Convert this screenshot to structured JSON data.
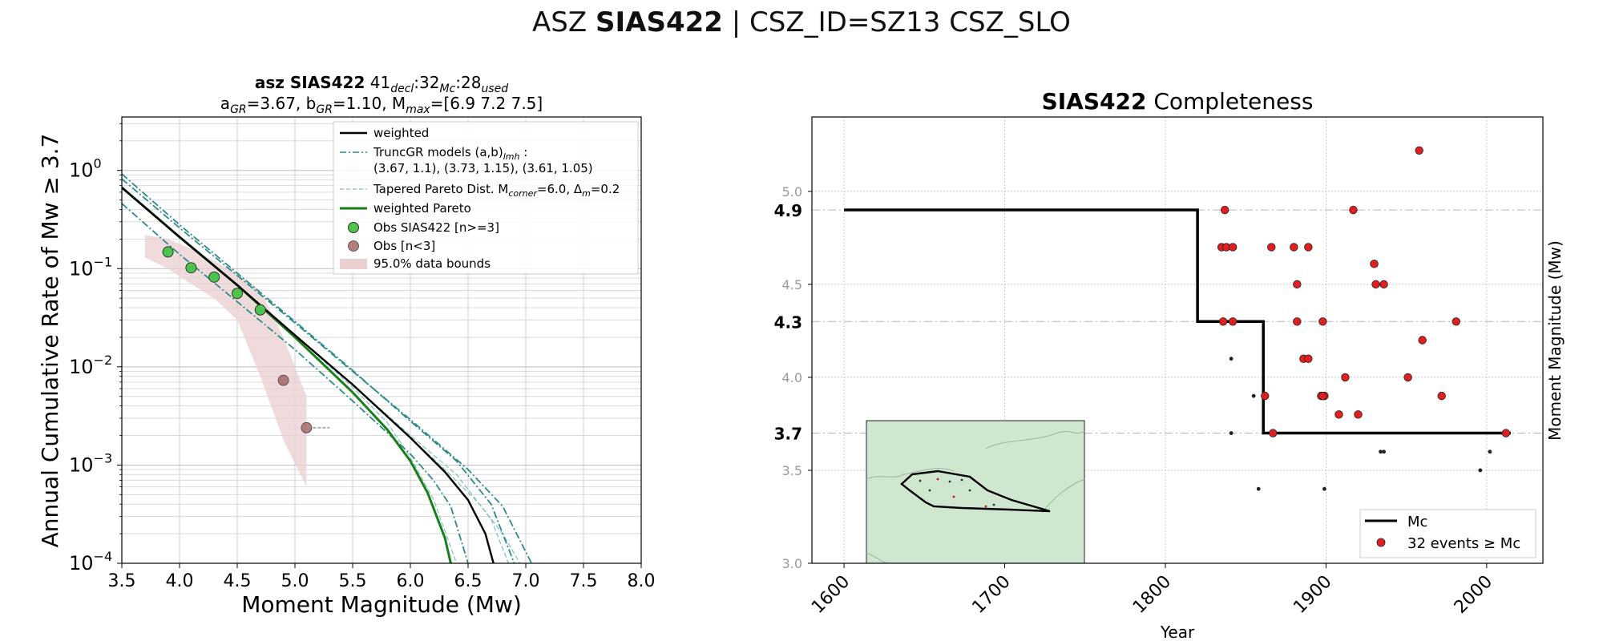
{
  "suptitle": {
    "prefix": "ASZ ",
    "bold": "SIAS422",
    "suffix": " | CSZ_ID=SZ13 CSZ_SLO"
  },
  "colors": {
    "green": "#1a7f1a",
    "teal": "#2e8b8b",
    "lightteal": "#7fbfbf",
    "obs": "#4cc44c",
    "obslow": "#a0605f",
    "band": "#e9cfcf",
    "mcred": "#e02020",
    "inset": "#cfe6cf"
  },
  "chart_data": [
    {
      "type": "line",
      "title_line1": {
        "bold": "asz SIAS422",
        "rest": "  41",
        "sub1": "decl",
        "t2": ":32",
        "sub2": "Mc",
        "t3": ":28",
        "sub3": "used"
      },
      "title_line2": {
        "a": "a",
        "a_sub": "GR",
        "a_val": "=3.67,  b",
        "b_sub": "GR",
        "b_val": "=1.10, M",
        "m_sub": "max",
        "m_val": "=[6.9 7.2 7.5]"
      },
      "xlabel": "Moment Magnitude (Mw)",
      "ylabel": "Annual Cumulative Rate of Mw  ≥  3.7",
      "xlim": [
        3.5,
        8.0
      ],
      "ylim": [
        0.0001,
        3.5
      ],
      "yscale": "log",
      "xticks": [
        "3.5",
        "4.0",
        "4.5",
        "5.0",
        "5.5",
        "6.0",
        "6.5",
        "7.0",
        "7.5",
        "8.0"
      ],
      "yticks": [
        {
          "v": 1,
          "base": "10",
          "exp": "0"
        },
        {
          "v": 0.1,
          "base": "10",
          "exp": "−1"
        },
        {
          "v": 0.01,
          "base": "10",
          "exp": "−2"
        },
        {
          "v": 0.001,
          "base": "10",
          "exp": "−3"
        },
        {
          "v": 0.0001,
          "base": "10",
          "exp": "−4"
        }
      ],
      "grid": true,
      "legend_position": "top-right",
      "legend": [
        {
          "label": "weighted",
          "style": "black"
        },
        {
          "label": "TruncGR models (a,b)",
          "sub": "lmh",
          "tail": " :",
          "label2": " (3.67, 1.1), (3.73, 1.15), (3.61, 1.05)",
          "style": "tealdash"
        },
        {
          "label": "Tapered Pareto Dist. M",
          "sub": "corner",
          "tail": "=6.0, Δ",
          "sub2": "m",
          "tail2": "=0.2",
          "style": "lightdash"
        },
        {
          "label": "weighted Pareto",
          "style": "green"
        },
        {
          "label": "Obs SIAS422 [n>=3]",
          "style": "obs"
        },
        {
          "label": "Obs [n<3]",
          "style": "obslow"
        },
        {
          "label": "95.0% data bounds",
          "style": "band"
        }
      ],
      "series": [
        {
          "name": "weighted",
          "x": [
            3.5,
            4.0,
            4.5,
            5.0,
            5.5,
            6.0,
            6.3,
            6.5,
            6.65,
            6.72
          ],
          "y": [
            0.67,
            0.21,
            0.068,
            0.021,
            0.0066,
            0.0019,
            0.00085,
            0.00044,
            0.0002,
            0.0001
          ]
        },
        {
          "name": "TruncGR models",
          "x": [
            3.5,
            4.0,
            4.5,
            5.0,
            5.5,
            6.0,
            6.4,
            6.7,
            6.9
          ],
          "y": [
            0.92,
            0.28,
            0.09,
            0.029,
            0.0092,
            0.0028,
            0.0011,
            0.0004,
            0.0001
          ]
        },
        {
          "name": "TruncGR models",
          "x": [
            3.5,
            4.0,
            4.5,
            5.0,
            5.5,
            6.0,
            6.5,
            6.8,
            7.05
          ],
          "y": [
            0.82,
            0.26,
            0.085,
            0.028,
            0.009,
            0.0029,
            0.0009,
            0.00038,
            0.0001
          ]
        },
        {
          "name": "TruncGR models",
          "x": [
            3.5,
            4.0,
            4.5,
            5.0,
            5.5,
            6.0,
            6.2,
            6.35,
            6.5
          ],
          "y": [
            0.46,
            0.14,
            0.046,
            0.015,
            0.0045,
            0.0013,
            0.0007,
            0.00038,
            0.0001
          ]
        },
        {
          "name": "Tapered Pareto Dist.",
          "x": [
            3.5,
            4.0,
            4.5,
            5.0,
            5.5,
            5.8,
            6.0,
            6.2,
            6.4
          ],
          "y": [
            0.67,
            0.21,
            0.068,
            0.021,
            0.0062,
            0.0027,
            0.0012,
            0.00045,
            0.0001
          ]
        },
        {
          "name": "Tapered Pareto Dist.",
          "x": [
            3.5,
            4.0,
            4.5,
            5.0,
            5.5,
            6.0,
            6.3,
            6.6,
            6.8,
            6.95
          ],
          "y": [
            0.67,
            0.21,
            0.068,
            0.021,
            0.0066,
            0.0019,
            0.0009,
            0.0004,
            0.0002,
            0.0001
          ]
        },
        {
          "name": "Tapered Pareto Dist.",
          "x": [
            3.5,
            4.0,
            4.5,
            5.0,
            5.5,
            6.0,
            6.4,
            6.7,
            6.85
          ],
          "y": [
            0.67,
            0.21,
            0.068,
            0.021,
            0.0066,
            0.002,
            0.0008,
            0.00028,
            0.0001
          ]
        },
        {
          "name": "weighted Pareto",
          "x": [
            3.5,
            4.0,
            4.5,
            5.0,
            5.5,
            5.8,
            6.0,
            6.15,
            6.3,
            6.35
          ],
          "y": [
            0.67,
            0.21,
            0.068,
            0.02,
            0.0055,
            0.0023,
            0.0011,
            0.00052,
            0.00018,
            0.0001
          ]
        }
      ],
      "obs": [
        {
          "x": 3.9,
          "y": 0.148
        },
        {
          "x": 4.1,
          "y": 0.102
        },
        {
          "x": 4.3,
          "y": 0.082
        },
        {
          "x": 4.5,
          "y": 0.056
        },
        {
          "x": 4.7,
          "y": 0.038
        }
      ],
      "obs_low": [
        {
          "x": 4.9,
          "y": 0.0073
        },
        {
          "x": 5.1,
          "y": 0.0024
        }
      ],
      "band": {
        "x": [
          3.7,
          3.9,
          4.1,
          4.3,
          4.5,
          4.7,
          4.9,
          5.1,
          5.1,
          4.9,
          4.7,
          4.5,
          4.3,
          4.1,
          3.9,
          3.7
        ],
        "y": [
          0.22,
          0.2,
          0.16,
          0.12,
          0.09,
          0.06,
          0.02,
          0.005,
          0.0006,
          0.0018,
          0.008,
          0.03,
          0.05,
          0.07,
          0.1,
          0.13
        ]
      }
    },
    {
      "type": "scatter",
      "title": {
        "bold": "SIAS422",
        "rest": " Completeness"
      },
      "xlabel": "Year",
      "ylabel": "Moment Magnitude (Mw)",
      "xlim": [
        1580,
        2035
      ],
      "ylim": [
        3.0,
        5.4
      ],
      "xticks": [
        "1600",
        "1700",
        "1800",
        "1900",
        "2000"
      ],
      "yticks": [
        "3.0",
        "3.5",
        "4.0",
        "4.5",
        "5.0"
      ],
      "mc_labels": [
        "4.9",
        "4.3",
        "3.7"
      ],
      "grid": true,
      "legend_position": "bottom-right",
      "legend": [
        {
          "label": "Mc",
          "style": "black"
        },
        {
          "label": "32 events ≥ Mc",
          "style": "red"
        }
      ],
      "mc_step": {
        "x": [
          1600,
          1820,
          1820,
          1861,
          1861,
          2015
        ],
        "y": [
          4.9,
          4.9,
          4.3,
          4.3,
          3.7,
          3.7
        ]
      },
      "events_above": [
        {
          "x": 1958,
          "y": 5.22
        },
        {
          "x": 1837,
          "y": 4.9
        },
        {
          "x": 1917,
          "y": 4.9
        },
        {
          "x": 1835,
          "y": 4.7
        },
        {
          "x": 1838,
          "y": 4.7
        },
        {
          "x": 1842,
          "y": 4.7
        },
        {
          "x": 1866,
          "y": 4.7
        },
        {
          "x": 1880,
          "y": 4.7
        },
        {
          "x": 1889,
          "y": 4.7
        },
        {
          "x": 1930,
          "y": 4.61
        },
        {
          "x": 1931,
          "y": 4.5
        },
        {
          "x": 1936,
          "y": 4.5
        },
        {
          "x": 1882,
          "y": 4.5
        },
        {
          "x": 1836,
          "y": 4.3
        },
        {
          "x": 1842,
          "y": 4.3
        },
        {
          "x": 1882,
          "y": 4.3
        },
        {
          "x": 1898,
          "y": 4.3
        },
        {
          "x": 1981,
          "y": 4.3
        },
        {
          "x": 1960,
          "y": 4.2
        },
        {
          "x": 1886,
          "y": 4.1
        },
        {
          "x": 1889,
          "y": 4.1
        },
        {
          "x": 1912,
          "y": 4.0
        },
        {
          "x": 1951,
          "y": 4.0
        },
        {
          "x": 1862,
          "y": 3.9
        },
        {
          "x": 1897,
          "y": 3.9
        },
        {
          "x": 1899,
          "y": 3.9
        },
        {
          "x": 1972,
          "y": 3.9
        },
        {
          "x": 1908,
          "y": 3.8
        },
        {
          "x": 1920,
          "y": 3.8
        },
        {
          "x": 1867,
          "y": 3.7
        },
        {
          "x": 2012,
          "y": 3.7
        },
        {
          "x": 1898,
          "y": 3.9
        }
      ],
      "events_below": [
        {
          "x": 1841,
          "y": 4.1
        },
        {
          "x": 1855,
          "y": 3.9
        },
        {
          "x": 1841,
          "y": 3.7
        },
        {
          "x": 1934,
          "y": 3.6
        },
        {
          "x": 1936,
          "y": 3.6
        },
        {
          "x": 2002,
          "y": 3.6
        },
        {
          "x": 1996,
          "y": 3.5
        },
        {
          "x": 1858,
          "y": 3.4
        },
        {
          "x": 1899,
          "y": 3.4
        }
      ]
    }
  ]
}
